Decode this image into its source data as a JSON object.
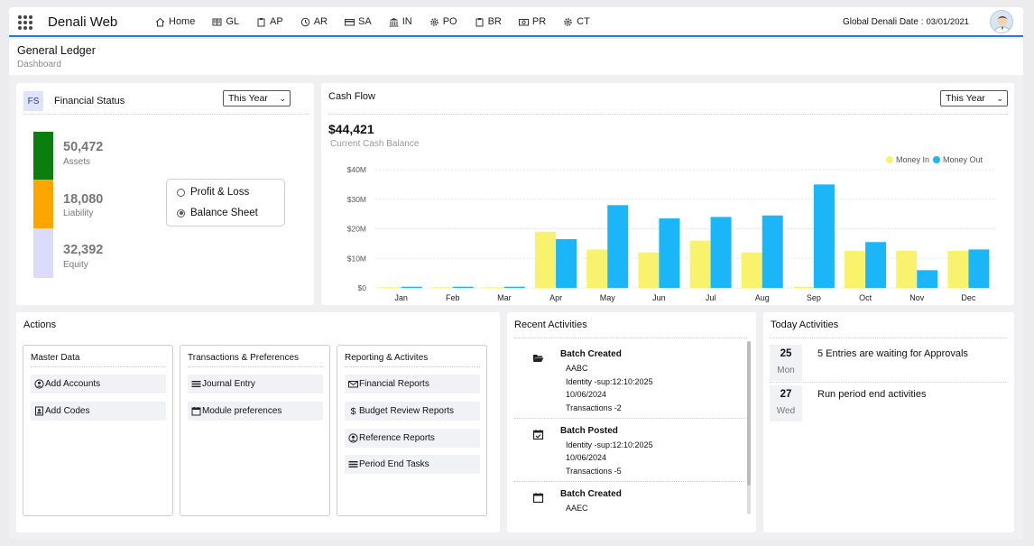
{
  "app": {
    "title": "Denali Web"
  },
  "nav": [
    {
      "label": "Home",
      "icon": "home-icon"
    },
    {
      "label": "GL",
      "icon": "ledger-icon"
    },
    {
      "label": "AP",
      "icon": "clipboard-icon"
    },
    {
      "label": "AR",
      "icon": "clock-icon"
    },
    {
      "label": "SA",
      "icon": "card-icon"
    },
    {
      "label": "IN",
      "icon": "bank-icon"
    },
    {
      "label": "PO",
      "icon": "gear-icon"
    },
    {
      "label": "BR",
      "icon": "clipboard-icon"
    },
    {
      "label": "PR",
      "icon": "cash-icon"
    },
    {
      "label": "CT",
      "icon": "gear-icon"
    }
  ],
  "global_date": {
    "label": "Global Denali Date :",
    "value": "03/01/2021"
  },
  "page": {
    "title": "General Ledger",
    "subtitle": "Dashboard"
  },
  "financial_status": {
    "badge": "FS",
    "title": "Financial Status",
    "period": "This Year",
    "items": [
      {
        "value": "50,472",
        "label": "Assets",
        "color": "#0c7e0f"
      },
      {
        "value": "18,080",
        "label": "Liability",
        "color": "#ffa500"
      },
      {
        "value": "32,392",
        "label": "Equity",
        "color": "#dcdcfa"
      }
    ],
    "options": [
      {
        "label": "Profit & Loss",
        "selected": false
      },
      {
        "label": "Balance Sheet",
        "selected": true
      }
    ]
  },
  "cash_flow": {
    "title": "Cash Flow",
    "period": "This Year",
    "balance": "$44,421",
    "balance_label": "Current Cash Balance"
  },
  "chart_data": {
    "type": "bar",
    "categories": [
      "Jan",
      "Feb",
      "Mar",
      "Apr",
      "May",
      "Jun",
      "Jul",
      "Aug",
      "Sep",
      "Oct",
      "Nov",
      "Dec"
    ],
    "series": [
      {
        "name": "Money In",
        "color": "#f8f26c",
        "values": [
          0.2,
          0.2,
          0.2,
          19,
          13,
          12,
          16,
          12,
          0.3,
          12.5,
          12.5,
          12.5
        ]
      },
      {
        "name": "Money Out",
        "color": "#1ab6f7",
        "values": [
          0.4,
          0.4,
          0.4,
          16.5,
          28,
          23.5,
          24,
          24.5,
          35,
          15.5,
          6,
          13
        ]
      }
    ],
    "yticks": [
      "$0",
      "$10M",
      "$20M",
      "$30M",
      "$40M"
    ],
    "ylim": [
      0,
      40
    ],
    "legend": "top-right"
  },
  "actions": {
    "title": "Actions",
    "groups": [
      {
        "title": "Master Data",
        "items": [
          {
            "label": "Add Accounts",
            "icon": "user-circle-icon"
          },
          {
            "label": "Add Codes",
            "icon": "id-card-icon"
          }
        ]
      },
      {
        "title": "Transactions & Preferences",
        "items": [
          {
            "label": "Journal Entry",
            "icon": "journal-icon"
          },
          {
            "label": "Module preferences",
            "icon": "calendar-icon"
          }
        ]
      },
      {
        "title": "Reporting & Activites",
        "items": [
          {
            "label": "Financial Reports",
            "icon": "envelope-icon"
          },
          {
            "label": "Budget Review Reports",
            "icon": "dollar-icon"
          },
          {
            "label": "Reference Reports",
            "icon": "user-circle-icon"
          },
          {
            "label": "Period End Tasks",
            "icon": "journal-icon"
          }
        ]
      }
    ]
  },
  "recent": {
    "title": "Recent Activities",
    "items": [
      {
        "title": "Batch Created",
        "icon": "folder-open-icon",
        "lines": [
          "AABC",
          "Identity -sup:12:10:2025",
          "10/06/2024",
          "Transactions -2"
        ]
      },
      {
        "title": "Batch Posted",
        "icon": "calendar-check-icon",
        "lines": [
          "Identity -sup:12:10:2025",
          "10/06/2024",
          "Transactions -5"
        ]
      },
      {
        "title": "Batch Created",
        "icon": "calendar-icon",
        "lines": [
          "AAEC"
        ]
      }
    ]
  },
  "today": {
    "title": "Today Activities",
    "items": [
      {
        "day": "25",
        "weekday": "Mon",
        "text": "5 Entries are waiting for Approvals"
      },
      {
        "day": "27",
        "weekday": "Wed",
        "text": "Run period end activities"
      }
    ]
  }
}
